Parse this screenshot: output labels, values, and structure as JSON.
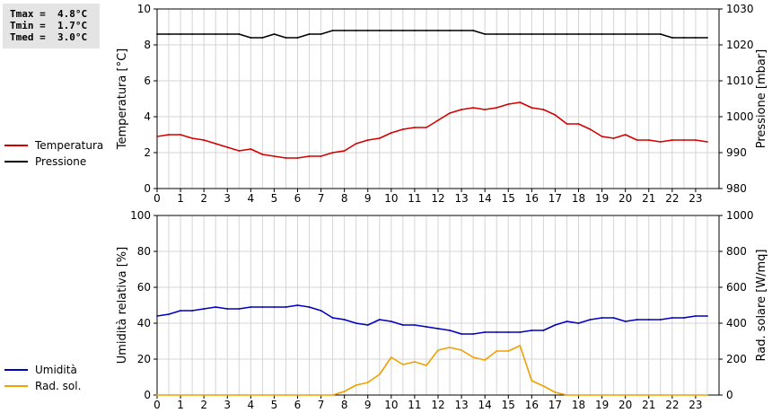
{
  "stats": {
    "tmax": "Tmax =  4.8°C",
    "tmin": "Tmin =  1.7°C",
    "tmed": "Tmed =  3.0°C"
  },
  "colors": {
    "temperature": "#d40000",
    "pressure": "#000000",
    "humidity": "#0000c0",
    "radiation": "#f0a000",
    "grid": "#d4d4d4"
  },
  "chart_data": [
    {
      "type": "line",
      "x_ticks": [
        "0",
        "1",
        "2",
        "3",
        "4",
        "5",
        "6",
        "7",
        "8",
        "9",
        "10",
        "11",
        "12",
        "13",
        "14",
        "15",
        "16",
        "17",
        "18",
        "19",
        "20",
        "21",
        "22",
        "23"
      ],
      "xlim": [
        0,
        24
      ],
      "grid": true,
      "legend_placement": "left",
      "ylabel_left": "Temperatura [°C]",
      "ylim_left": [
        0,
        10
      ],
      "yticks_left": [
        "0",
        "2",
        "4",
        "6",
        "8",
        "10"
      ],
      "ylabel_right": "Pressione [mbar]",
      "ylim_right": [
        980,
        1030
      ],
      "yticks_right": [
        "980",
        "990",
        "1000",
        "1010",
        "1020",
        "1030"
      ],
      "series": [
        {
          "name": "Temperatura",
          "axis": "left",
          "x": [
            0,
            0.5,
            1,
            1.5,
            2,
            2.5,
            3,
            3.5,
            4,
            4.5,
            5,
            5.5,
            6,
            6.5,
            7,
            7.5,
            8,
            8.5,
            9,
            9.5,
            10,
            10.5,
            11,
            11.5,
            12,
            12.5,
            13,
            13.5,
            14,
            14.5,
            15,
            15.5,
            16,
            16.5,
            17,
            17.5,
            18,
            18.5,
            19,
            19.5,
            20,
            20.5,
            21,
            21.5,
            22,
            22.5,
            23,
            23.5
          ],
          "y": [
            2.9,
            3.0,
            3.0,
            2.8,
            2.7,
            2.5,
            2.3,
            2.1,
            2.2,
            1.9,
            1.8,
            1.7,
            1.7,
            1.8,
            1.8,
            2.0,
            2.1,
            2.5,
            2.7,
            2.8,
            3.1,
            3.3,
            3.4,
            3.4,
            3.8,
            4.2,
            4.4,
            4.5,
            4.4,
            4.5,
            4.7,
            4.8,
            4.5,
            4.4,
            4.1,
            3.6,
            3.6,
            3.3,
            2.9,
            2.8,
            3.0,
            2.7,
            2.7,
            2.6,
            2.7,
            2.7,
            2.7,
            2.6
          ]
        },
        {
          "name": "Pressione",
          "axis": "right",
          "x": [
            0,
            0.5,
            1,
            1.5,
            2,
            2.5,
            3,
            3.5,
            4,
            4.5,
            5,
            5.5,
            6,
            6.5,
            7,
            7.5,
            8,
            8.5,
            9,
            9.5,
            10,
            10.5,
            11,
            11.5,
            12,
            12.5,
            13,
            13.5,
            14,
            14.5,
            15,
            15.5,
            16,
            16.5,
            17,
            17.5,
            18,
            18.5,
            19,
            19.5,
            20,
            20.5,
            21,
            21.5,
            22,
            22.5,
            23,
            23.5
          ],
          "y": [
            1023,
            1023,
            1023,
            1023,
            1023,
            1023,
            1023,
            1023,
            1022,
            1022,
            1023,
            1022,
            1022,
            1023,
            1023,
            1024,
            1024,
            1024,
            1024,
            1024,
            1024,
            1024,
            1024,
            1024,
            1024,
            1024,
            1024,
            1024,
            1023,
            1023,
            1023,
            1023,
            1023,
            1023,
            1023,
            1023,
            1023,
            1023,
            1023,
            1023,
            1023,
            1023,
            1023,
            1023,
            1022,
            1022,
            1022,
            1022
          ]
        }
      ]
    },
    {
      "type": "line",
      "x_ticks": [
        "0",
        "1",
        "2",
        "3",
        "4",
        "5",
        "6",
        "7",
        "8",
        "9",
        "10",
        "11",
        "12",
        "13",
        "14",
        "15",
        "16",
        "17",
        "18",
        "19",
        "20",
        "21",
        "22",
        "23"
      ],
      "xlim": [
        0,
        24
      ],
      "grid": true,
      "legend_placement": "left",
      "ylabel_left": "Umidità relativa [%]",
      "ylim_left": [
        0,
        100
      ],
      "yticks_left": [
        "0",
        "20",
        "40",
        "60",
        "80",
        "100"
      ],
      "ylabel_right": "Rad. solare [W/mq]",
      "ylim_right": [
        0,
        1000
      ],
      "yticks_right": [
        "0",
        "200",
        "400",
        "600",
        "800",
        "1000"
      ],
      "series": [
        {
          "name": "Umidità",
          "axis": "left",
          "x": [
            0,
            0.5,
            1,
            1.5,
            2,
            2.5,
            3,
            3.5,
            4,
            4.5,
            5,
            5.5,
            6,
            6.5,
            7,
            7.5,
            8,
            8.5,
            9,
            9.5,
            10,
            10.5,
            11,
            11.5,
            12,
            12.5,
            13,
            13.5,
            14,
            14.5,
            15,
            15.5,
            16,
            16.5,
            17,
            17.5,
            18,
            18.5,
            19,
            19.5,
            20,
            20.5,
            21,
            21.5,
            22,
            22.5,
            23,
            23.5
          ],
          "y": [
            44,
            45,
            47,
            47,
            48,
            49,
            48,
            48,
            49,
            49,
            49,
            49,
            50,
            49,
            47,
            43,
            42,
            40,
            39,
            42,
            41,
            39,
            39,
            38,
            37,
            36,
            34,
            34,
            35,
            35,
            35,
            35,
            36,
            36,
            39,
            41,
            40,
            42,
            43,
            43,
            41,
            42,
            42,
            42,
            43,
            43,
            44,
            44
          ]
        },
        {
          "name": "Rad. sol.",
          "axis": "right",
          "x": [
            0,
            0.5,
            1,
            1.5,
            2,
            2.5,
            3,
            3.5,
            4,
            4.5,
            5,
            5.5,
            6,
            6.5,
            7,
            7.5,
            8,
            8.5,
            9,
            9.5,
            10,
            10.5,
            11,
            11.5,
            12,
            12.5,
            13,
            13.5,
            14,
            14.5,
            15,
            15.5,
            16,
            16.5,
            17,
            17.5,
            18,
            18.5,
            19,
            19.5,
            20,
            20.5,
            21,
            21.5,
            22,
            22.5,
            23,
            23.5
          ],
          "y": [
            0,
            0,
            0,
            0,
            0,
            0,
            0,
            0,
            0,
            0,
            0,
            0,
            0,
            0,
            0,
            0,
            20,
            55,
            70,
            115,
            210,
            170,
            185,
            165,
            250,
            265,
            250,
            210,
            195,
            245,
            245,
            275,
            80,
            50,
            15,
            0,
            0,
            0,
            0,
            0,
            0,
            0,
            0,
            0,
            0,
            0,
            0,
            0
          ]
        }
      ]
    }
  ]
}
